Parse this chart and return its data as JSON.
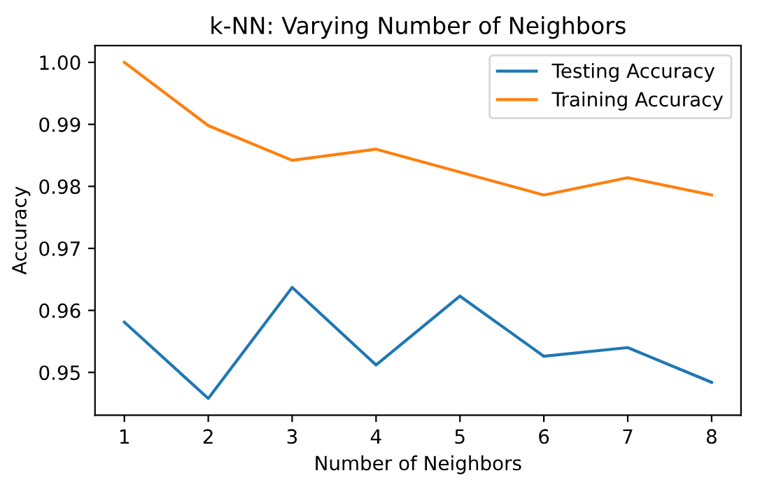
{
  "chart_data": {
    "type": "line",
    "title": "k-NN: Varying Number of Neighbors",
    "xlabel": "Number of Neighbors",
    "ylabel": "Accuracy",
    "x": [
      1,
      2,
      3,
      4,
      5,
      6,
      7,
      8
    ],
    "series": [
      {
        "name": "Testing Accuracy",
        "color": "#1f77b4",
        "values": [
          0.9581,
          0.9458,
          0.9637,
          0.9512,
          0.9623,
          0.9526,
          0.954,
          0.9484
        ]
      },
      {
        "name": "Training Accuracy",
        "color": "#ff7f0e",
        "values": [
          1.0,
          0.9898,
          0.9842,
          0.986,
          0.9823,
          0.9786,
          0.9814,
          0.9786
        ]
      }
    ],
    "xlim": [
      0.65,
      8.35
    ],
    "ylim": [
      0.9431,
      1.0027
    ],
    "xticks": [
      1,
      2,
      3,
      4,
      5,
      6,
      7,
      8
    ],
    "yticks": [
      {
        "value": 0.95,
        "label": "0.95"
      },
      {
        "value": 0.96,
        "label": "0.96"
      },
      {
        "value": 0.97,
        "label": "0.97"
      },
      {
        "value": 0.98,
        "label": "0.98"
      },
      {
        "value": 0.99,
        "label": "0.99"
      },
      {
        "value": 1.0,
        "label": "1.00"
      }
    ],
    "legend": "top right",
    "grid": false,
    "marker": "none",
    "line_style": "solid"
  }
}
